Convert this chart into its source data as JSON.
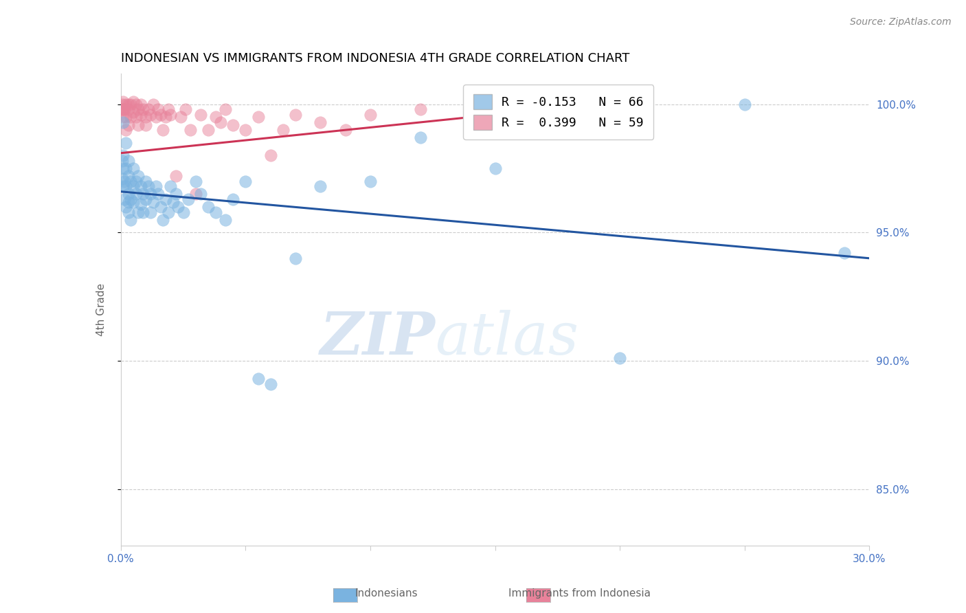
{
  "title": "INDONESIAN VS IMMIGRANTS FROM INDONESIA 4TH GRADE CORRELATION CHART",
  "source": "Source: ZipAtlas.com",
  "ylabel": "4th Grade",
  "y_tick_labels": [
    "85.0%",
    "90.0%",
    "95.0%",
    "100.0%"
  ],
  "y_tick_values": [
    0.85,
    0.9,
    0.95,
    1.0
  ],
  "x_lim": [
    0.0,
    0.3
  ],
  "y_lim": [
    0.828,
    1.012
  ],
  "legend_r1": "R = -0.153   N = 66",
  "legend_r2": "R =  0.399   N = 59",
  "blue_color": "#7ab3e0",
  "pink_color": "#e8829a",
  "blue_line_color": "#2255a0",
  "pink_line_color": "#cc3355",
  "axis_color": "#4472c4",
  "watermark": "ZIPatlas",
  "blue_line_x0": 0.0,
  "blue_line_y0": 0.966,
  "blue_line_x1": 0.3,
  "blue_line_y1": 0.94,
  "pink_line_x0": 0.0,
  "pink_line_y0": 0.981,
  "pink_line_x1": 0.2,
  "pink_line_y1": 1.001,
  "blue_scatter_x": [
    0.0005,
    0.0005,
    0.001,
    0.001,
    0.001,
    0.001,
    0.0015,
    0.0015,
    0.002,
    0.002,
    0.002,
    0.002,
    0.003,
    0.003,
    0.003,
    0.003,
    0.003,
    0.004,
    0.004,
    0.004,
    0.005,
    0.005,
    0.005,
    0.006,
    0.006,
    0.007,
    0.007,
    0.008,
    0.008,
    0.009,
    0.009,
    0.01,
    0.01,
    0.011,
    0.012,
    0.012,
    0.013,
    0.014,
    0.015,
    0.016,
    0.017,
    0.018,
    0.019,
    0.02,
    0.021,
    0.022,
    0.023,
    0.025,
    0.027,
    0.03,
    0.032,
    0.035,
    0.038,
    0.042,
    0.045,
    0.05,
    0.055,
    0.06,
    0.07,
    0.08,
    0.1,
    0.12,
    0.15,
    0.2,
    0.25,
    0.29
  ],
  "blue_scatter_y": [
    0.971,
    0.978,
    0.993,
    0.98,
    0.968,
    0.975,
    0.97,
    0.963,
    0.985,
    0.975,
    0.968,
    0.96,
    0.972,
    0.978,
    0.965,
    0.958,
    0.962,
    0.97,
    0.963,
    0.955,
    0.975,
    0.968,
    0.962,
    0.97,
    0.965,
    0.972,
    0.958,
    0.968,
    0.961,
    0.965,
    0.958,
    0.97,
    0.963,
    0.968,
    0.965,
    0.958,
    0.962,
    0.968,
    0.965,
    0.96,
    0.955,
    0.963,
    0.958,
    0.968,
    0.962,
    0.965,
    0.96,
    0.958,
    0.963,
    0.97,
    0.965,
    0.96,
    0.958,
    0.955,
    0.963,
    0.97,
    0.893,
    0.891,
    0.94,
    0.968,
    0.97,
    0.987,
    0.975,
    0.901,
    1.0,
    0.942
  ],
  "pink_scatter_x": [
    0.0005,
    0.0005,
    0.001,
    0.001,
    0.001,
    0.0015,
    0.002,
    0.002,
    0.002,
    0.003,
    0.003,
    0.003,
    0.004,
    0.004,
    0.005,
    0.005,
    0.006,
    0.006,
    0.007,
    0.007,
    0.008,
    0.008,
    0.009,
    0.01,
    0.01,
    0.011,
    0.012,
    0.013,
    0.014,
    0.015,
    0.016,
    0.017,
    0.018,
    0.019,
    0.02,
    0.022,
    0.024,
    0.026,
    0.028,
    0.03,
    0.032,
    0.035,
    0.038,
    0.04,
    0.042,
    0.045,
    0.05,
    0.055,
    0.06,
    0.065,
    0.07,
    0.08,
    0.09,
    0.1,
    0.12,
    0.14,
    0.16,
    0.18,
    0.2
  ],
  "pink_scatter_y": [
    0.998,
    1.0,
    1.001,
    0.998,
    0.995,
    0.998,
    1.0,
    0.995,
    0.99,
    1.0,
    0.998,
    0.992,
    1.0,
    0.995,
    1.001,
    0.997,
    1.0,
    0.995,
    0.998,
    0.992,
    1.0,
    0.996,
    0.998,
    0.995,
    0.992,
    0.998,
    0.996,
    1.0,
    0.995,
    0.998,
    0.996,
    0.99,
    0.995,
    0.998,
    0.996,
    0.972,
    0.995,
    0.998,
    0.99,
    0.965,
    0.996,
    0.99,
    0.995,
    0.993,
    0.998,
    0.992,
    0.99,
    0.995,
    0.98,
    0.99,
    0.996,
    0.993,
    0.99,
    0.996,
    0.998,
    0.995,
    1.0,
    0.996,
    0.998
  ]
}
